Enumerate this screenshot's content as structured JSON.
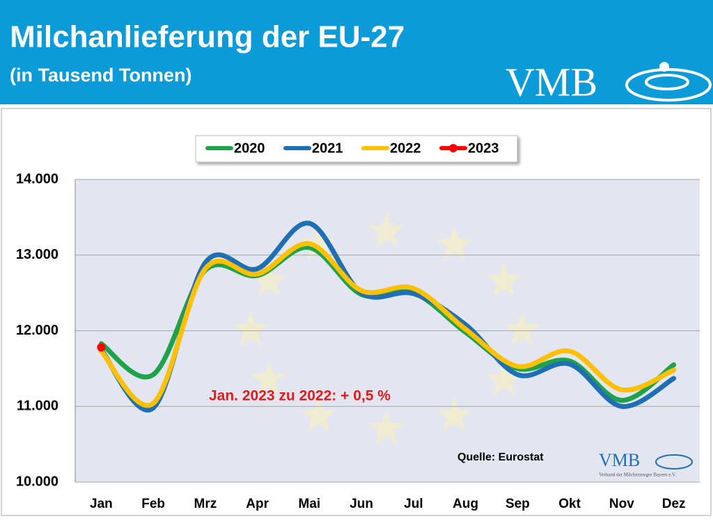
{
  "chart_data": {
    "type": "line",
    "title": "Milchanlieferung der EU-27",
    "subtitle": "(in Tausend Tonnen)",
    "logo": "VMB",
    "categories": [
      "Jan",
      "Feb",
      "Mrz",
      "Apr",
      "Mai",
      "Jun",
      "Jul",
      "Aug",
      "Sep",
      "Okt",
      "Nov",
      "Dez"
    ],
    "series": [
      {
        "name": "2020",
        "color": "#1fa34a",
        "values": [
          11830,
          11420,
          12800,
          12730,
          13100,
          12480,
          12500,
          11980,
          11500,
          11600,
          11080,
          11550
        ]
      },
      {
        "name": "2021",
        "color": "#1f6fb5",
        "values": [
          11750,
          10980,
          12900,
          12820,
          13420,
          12500,
          12490,
          12080,
          11420,
          11560,
          11000,
          11370
        ]
      },
      {
        "name": "2022",
        "color": "#ffc000",
        "values": [
          11730,
          11040,
          12820,
          12750,
          13150,
          12530,
          12560,
          12020,
          11530,
          11730,
          11220,
          11480
        ]
      },
      {
        "name": "2023",
        "color": "#ff0000",
        "values": [
          11780,
          null,
          null,
          null,
          null,
          null,
          null,
          null,
          null,
          null,
          null,
          null
        ]
      }
    ],
    "ylim": [
      10000,
      14000
    ],
    "yticks": [
      {
        "value": 10000,
        "label": "10.000"
      },
      {
        "value": 11000,
        "label": "11.000"
      },
      {
        "value": 12000,
        "label": "12.000"
      },
      {
        "value": 13000,
        "label": "13.000"
      },
      {
        "value": 14000,
        "label": "14.000"
      }
    ],
    "grid": true,
    "legend": "top",
    "annotation": "Jan. 2023 zu 2022: + 0,5 %",
    "source": "Quelle: Eurostat",
    "watermark": {
      "logo": "VMB",
      "org": "Verband der Milcherzeuger Bayern e.V."
    }
  }
}
